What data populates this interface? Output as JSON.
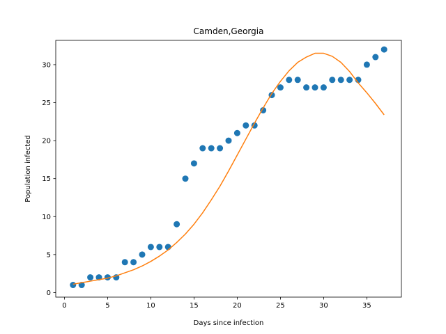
{
  "chart_data": {
    "type": "scatter",
    "title": "Camden,Georgia",
    "xlabel": "Days since infection",
    "ylabel": "Population infected",
    "xlim": [
      -1,
      39
    ],
    "ylim": [
      -0.6,
      33.2
    ],
    "xticks": [
      0,
      5,
      10,
      15,
      20,
      25,
      30,
      35
    ],
    "yticks": [
      0,
      5,
      10,
      15,
      20,
      25,
      30
    ],
    "grid": false,
    "series": [
      {
        "type": "scatter",
        "color": "#1f77b4",
        "x": [
          1,
          2,
          3,
          4,
          5,
          6,
          7,
          8,
          9,
          10,
          11,
          12,
          13,
          14,
          15,
          16,
          17,
          18,
          19,
          20,
          21,
          22,
          23,
          24,
          25,
          26,
          27,
          28,
          29,
          30,
          31,
          32,
          33,
          34,
          35,
          36,
          37
        ],
        "y": [
          1,
          1,
          2,
          2,
          2,
          2,
          4,
          4,
          5,
          6,
          6,
          6,
          9,
          15,
          17,
          19,
          19,
          19,
          20,
          21,
          22,
          22,
          24,
          26,
          27,
          28,
          28,
          27,
          27,
          27,
          28,
          28,
          28,
          28,
          30,
          31,
          32
        ]
      },
      {
        "type": "line",
        "color": "#ff7f0e",
        "x": [
          1,
          2,
          3,
          4,
          5,
          6,
          7,
          8,
          9,
          10,
          11,
          12,
          13,
          14,
          15,
          16,
          17,
          18,
          19,
          20,
          21,
          22,
          23,
          24,
          25,
          26,
          27,
          28,
          29,
          30,
          31,
          32,
          33,
          34,
          35,
          36,
          37
        ],
        "y": [
          1.1,
          1.3,
          1.5,
          1.7,
          1.9,
          2.2,
          2.6,
          3.0,
          3.5,
          4.1,
          4.8,
          5.6,
          6.6,
          7.7,
          9.0,
          10.5,
          12.2,
          14.0,
          16.0,
          18.1,
          20.2,
          22.3,
          24.3,
          26.2,
          27.8,
          29.2,
          30.3,
          31.0,
          31.5,
          31.5,
          31.1,
          30.3,
          29.1,
          27.6,
          26.3,
          24.9,
          23.4
        ]
      }
    ]
  }
}
